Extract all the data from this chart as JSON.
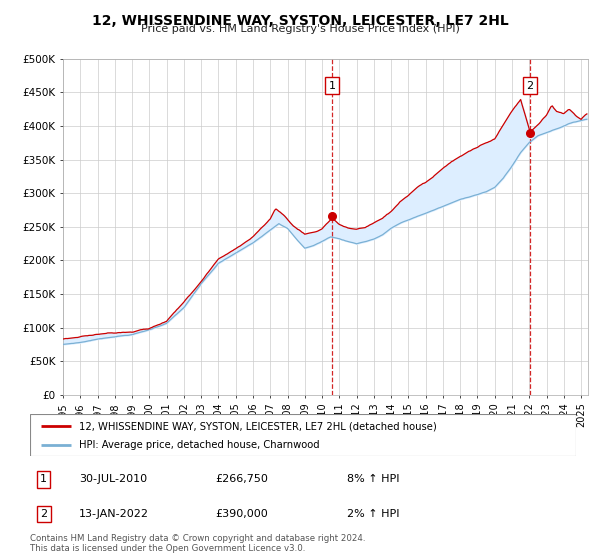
{
  "title": "12, WHISSENDINE WAY, SYSTON, LEICESTER, LE7 2HL",
  "subtitle": "Price paid vs. HM Land Registry's House Price Index (HPI)",
  "legend_line1": "12, WHISSENDINE WAY, SYSTON, LEICESTER, LE7 2HL (detached house)",
  "legend_line2": "HPI: Average price, detached house, Charnwood",
  "sale1_date": "30-JUL-2010",
  "sale1_price": "£266,750",
  "sale1_hpi": "8% ↑ HPI",
  "sale2_date": "13-JAN-2022",
  "sale2_price": "£390,000",
  "sale2_hpi": "2% ↑ HPI",
  "footer": "Contains HM Land Registry data © Crown copyright and database right 2024.\nThis data is licensed under the Open Government Licence v3.0.",
  "red_color": "#cc0000",
  "blue_color": "#7ab0d4",
  "fill_color": "#ddeeff",
  "grid_color": "#cccccc",
  "sale1_x": 2010.58,
  "sale2_x": 2022.04,
  "sale1_y": 266750,
  "sale2_y": 390000,
  "ylim": [
    0,
    500000
  ],
  "xlim_start": 1995.0,
  "xlim_end": 2025.4,
  "hpi_anchors": [
    [
      1995.0,
      75000
    ],
    [
      1996.0,
      78000
    ],
    [
      1997.0,
      83000
    ],
    [
      1998.0,
      87000
    ],
    [
      1999.0,
      90000
    ],
    [
      2000.0,
      97000
    ],
    [
      2001.0,
      107000
    ],
    [
      2002.0,
      130000
    ],
    [
      2003.0,
      165000
    ],
    [
      2004.0,
      195000
    ],
    [
      2005.0,
      210000
    ],
    [
      2006.0,
      225000
    ],
    [
      2007.0,
      245000
    ],
    [
      2007.5,
      255000
    ],
    [
      2008.0,
      248000
    ],
    [
      2008.5,
      232000
    ],
    [
      2009.0,
      218000
    ],
    [
      2009.5,
      222000
    ],
    [
      2010.0,
      228000
    ],
    [
      2010.5,
      235000
    ],
    [
      2011.0,
      232000
    ],
    [
      2011.5,
      228000
    ],
    [
      2012.0,
      225000
    ],
    [
      2012.5,
      228000
    ],
    [
      2013.0,
      232000
    ],
    [
      2013.5,
      238000
    ],
    [
      2014.0,
      248000
    ],
    [
      2014.5,
      255000
    ],
    [
      2015.0,
      260000
    ],
    [
      2015.5,
      265000
    ],
    [
      2016.0,
      270000
    ],
    [
      2016.5,
      275000
    ],
    [
      2017.0,
      280000
    ],
    [
      2017.5,
      285000
    ],
    [
      2018.0,
      290000
    ],
    [
      2018.5,
      294000
    ],
    [
      2019.0,
      298000
    ],
    [
      2019.5,
      302000
    ],
    [
      2020.0,
      308000
    ],
    [
      2020.5,
      322000
    ],
    [
      2021.0,
      340000
    ],
    [
      2021.5,
      360000
    ],
    [
      2022.0,
      375000
    ],
    [
      2022.5,
      385000
    ],
    [
      2023.0,
      390000
    ],
    [
      2023.5,
      395000
    ],
    [
      2024.0,
      400000
    ],
    [
      2024.5,
      405000
    ],
    [
      2025.3,
      410000
    ]
  ],
  "red_anchors": [
    [
      1995.0,
      83000
    ],
    [
      1996.0,
      87000
    ],
    [
      1997.0,
      91000
    ],
    [
      1998.0,
      94000
    ],
    [
      1999.0,
      97000
    ],
    [
      2000.0,
      102000
    ],
    [
      2001.0,
      112000
    ],
    [
      2002.0,
      140000
    ],
    [
      2003.0,
      172000
    ],
    [
      2004.0,
      205000
    ],
    [
      2005.0,
      220000
    ],
    [
      2006.0,
      238000
    ],
    [
      2007.0,
      265000
    ],
    [
      2007.3,
      280000
    ],
    [
      2007.8,
      270000
    ],
    [
      2008.3,
      255000
    ],
    [
      2009.0,
      242000
    ],
    [
      2009.5,
      245000
    ],
    [
      2010.0,
      250000
    ],
    [
      2010.58,
      266750
    ],
    [
      2011.0,
      258000
    ],
    [
      2011.5,
      252000
    ],
    [
      2012.0,
      250000
    ],
    [
      2012.5,
      252000
    ],
    [
      2013.0,
      258000
    ],
    [
      2013.5,
      265000
    ],
    [
      2014.0,
      275000
    ],
    [
      2014.5,
      288000
    ],
    [
      2015.0,
      298000
    ],
    [
      2015.5,
      308000
    ],
    [
      2016.0,
      315000
    ],
    [
      2016.5,
      325000
    ],
    [
      2017.0,
      335000
    ],
    [
      2017.5,
      345000
    ],
    [
      2018.0,
      352000
    ],
    [
      2018.5,
      360000
    ],
    [
      2019.0,
      365000
    ],
    [
      2019.5,
      372000
    ],
    [
      2020.0,
      378000
    ],
    [
      2020.5,
      400000
    ],
    [
      2021.0,
      420000
    ],
    [
      2021.5,
      438000
    ],
    [
      2022.04,
      390000
    ],
    [
      2022.5,
      400000
    ],
    [
      2023.0,
      415000
    ],
    [
      2023.3,
      430000
    ],
    [
      2023.6,
      420000
    ],
    [
      2024.0,
      418000
    ],
    [
      2024.3,
      425000
    ],
    [
      2024.7,
      415000
    ],
    [
      2025.0,
      410000
    ],
    [
      2025.3,
      418000
    ]
  ]
}
